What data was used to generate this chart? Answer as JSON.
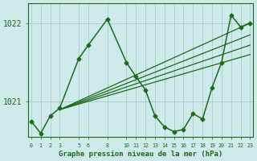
{
  "xlabel": "Graphe pression niveau de la mer (hPa)",
  "background_color": "#ceeaea",
  "grid_color": "#a8cccc",
  "line_color": "#1a6b1a",
  "yticks": [
    1021,
    1022
  ],
  "ylim": [
    1020.55,
    1022.25
  ],
  "xlim": [
    -0.3,
    23.3
  ],
  "xticks": [
    0,
    1,
    2,
    3,
    5,
    6,
    8,
    10,
    11,
    12,
    13,
    14,
    15,
    16,
    17,
    18,
    19,
    20,
    21,
    22,
    23
  ],
  "straight_lines": [
    {
      "x": [
        3,
        23
      ],
      "y": [
        1020.9,
        1022.0
      ]
    },
    {
      "x": [
        3,
        23
      ],
      "y": [
        1020.9,
        1021.85
      ]
    },
    {
      "x": [
        3,
        23
      ],
      "y": [
        1020.9,
        1021.72
      ]
    },
    {
      "x": [
        3,
        23
      ],
      "y": [
        1020.9,
        1021.6
      ]
    }
  ],
  "main_hours": [
    0,
    1,
    2,
    3,
    5,
    6,
    8,
    10,
    11,
    12,
    13,
    14,
    15,
    16,
    17,
    18,
    19,
    20,
    21,
    22,
    23
  ],
  "main_values": [
    1020.75,
    1020.6,
    1020.82,
    1020.92,
    1021.55,
    1021.72,
    1022.05,
    1021.5,
    1021.32,
    1021.15,
    1020.82,
    1020.68,
    1020.62,
    1020.65,
    1020.85,
    1020.78,
    1021.18,
    1021.5,
    1022.1,
    1021.95,
    1022.0
  ]
}
